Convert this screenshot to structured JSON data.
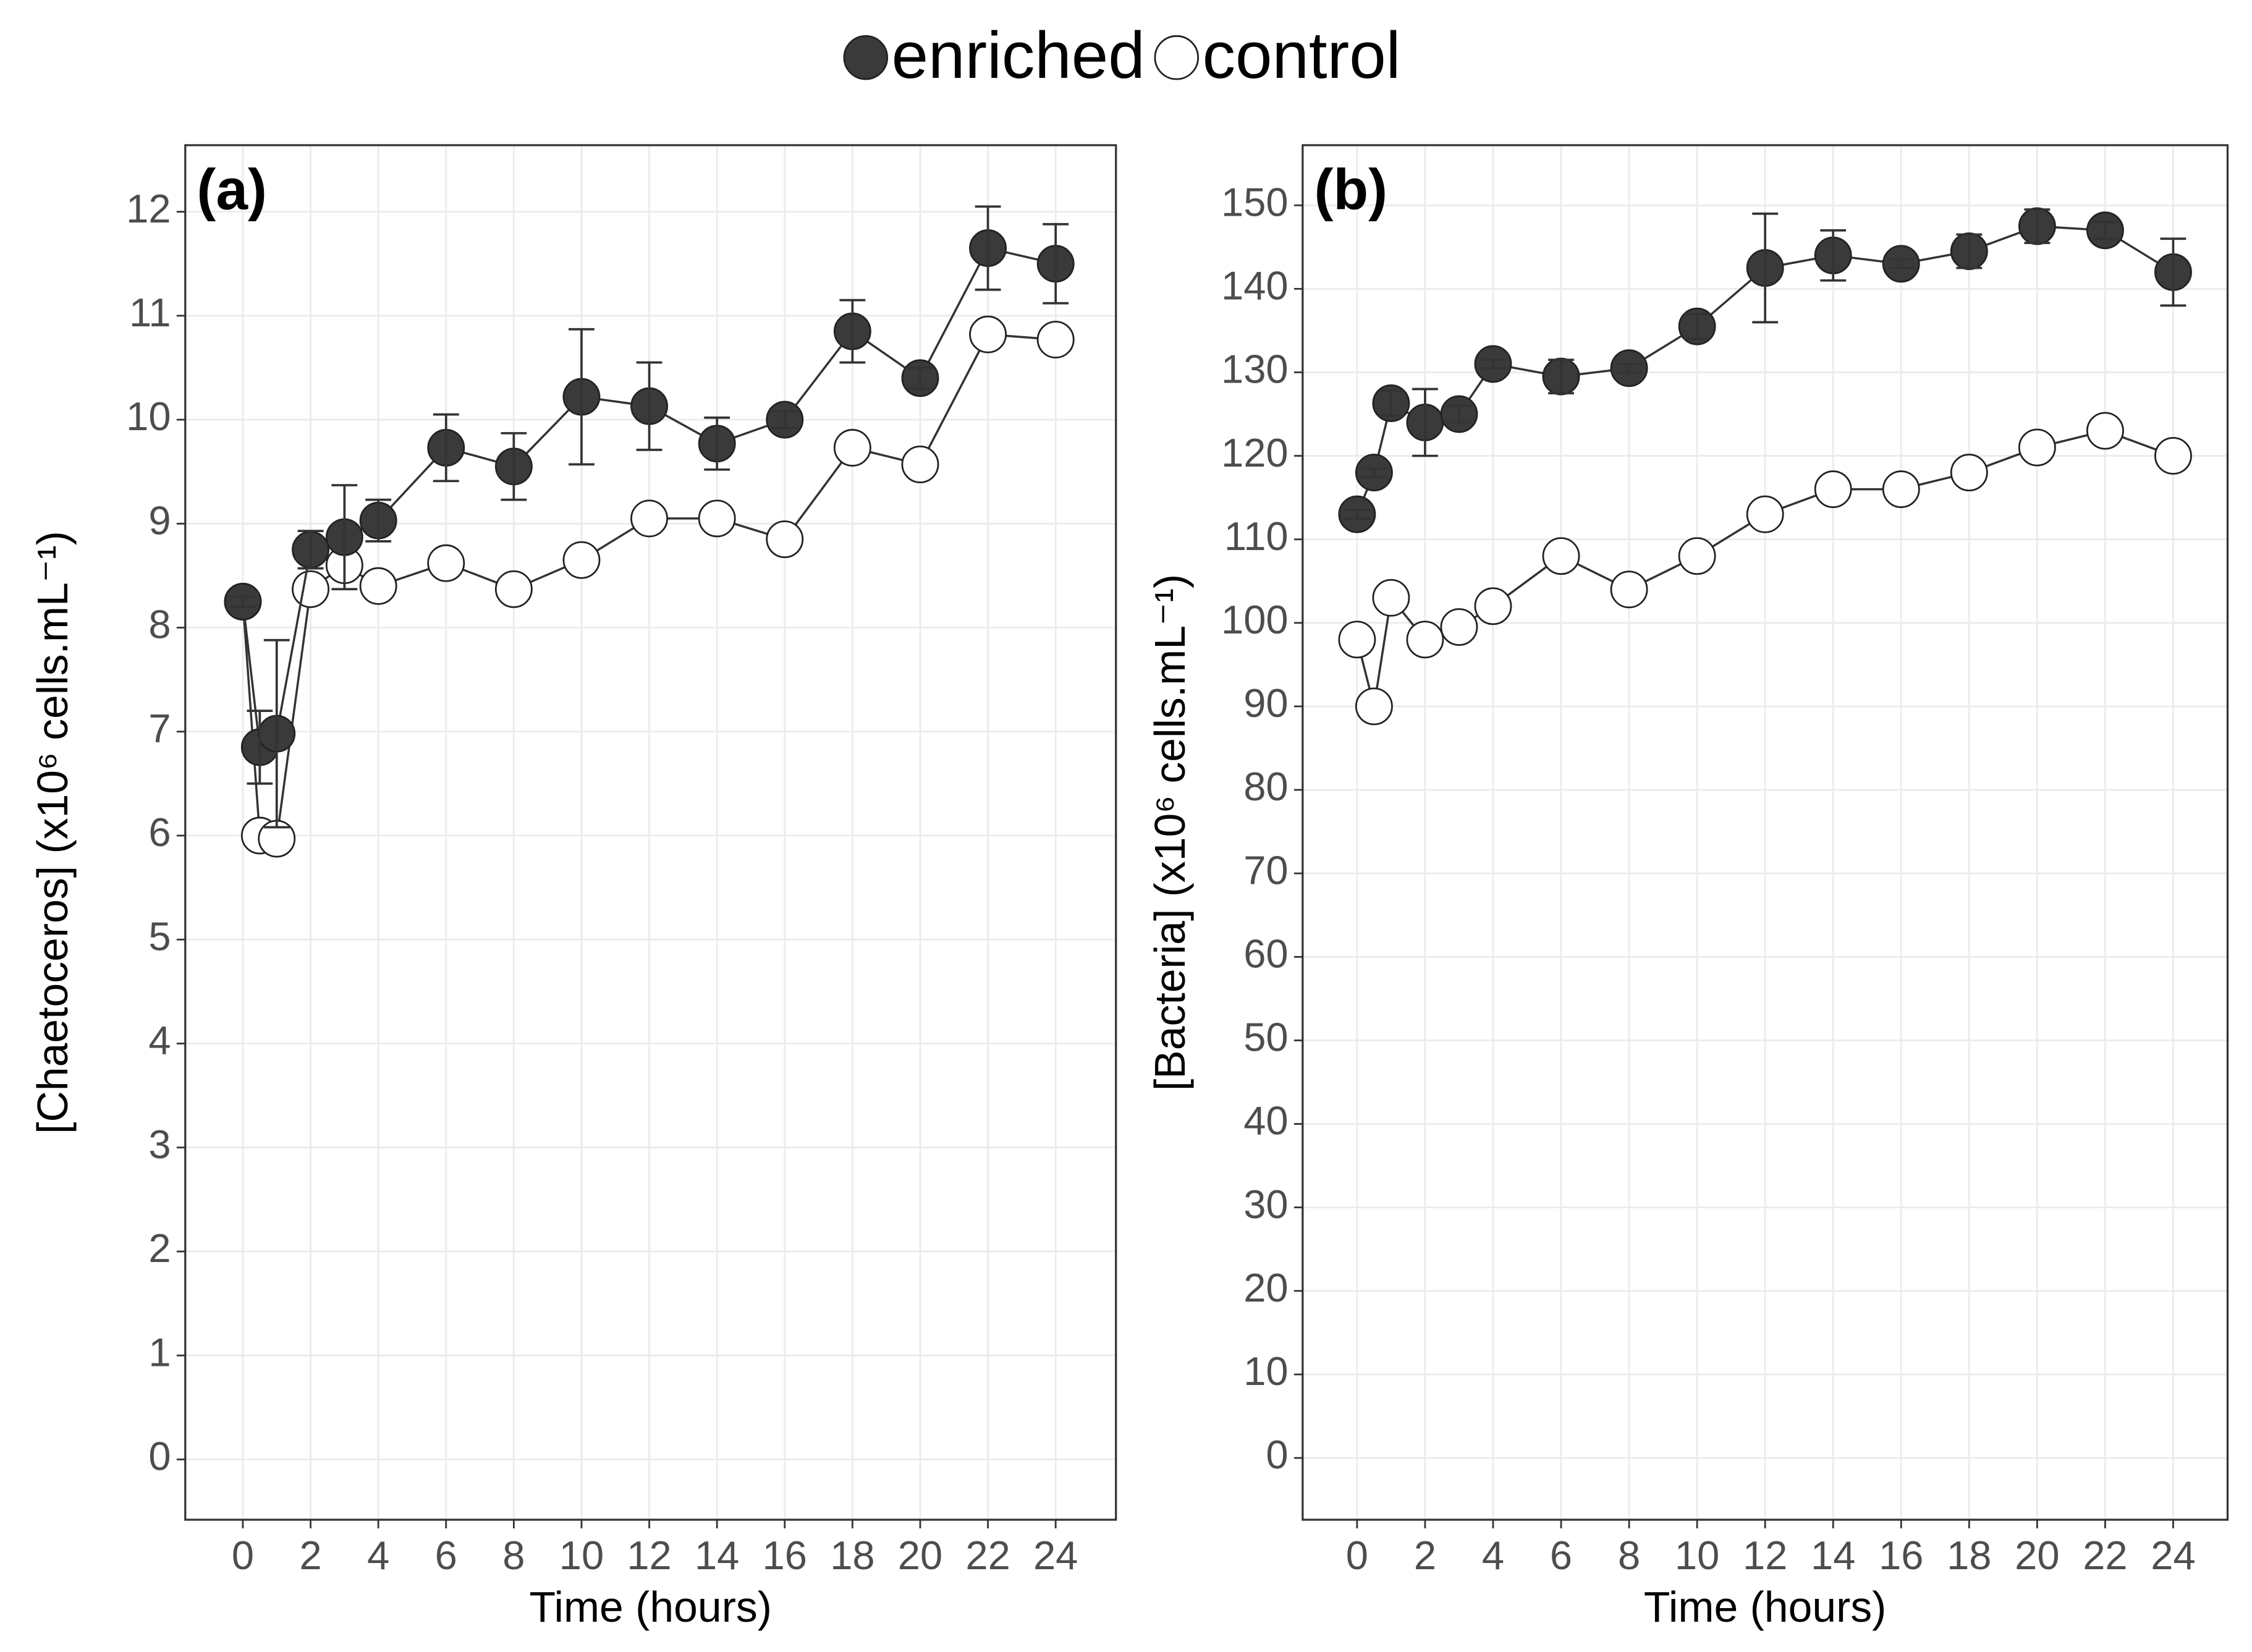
{
  "chart_data": [
    {
      "type": "line",
      "title": "(a)",
      "xlabel": "Time (hours)",
      "ylabel": "[Chaetoceros] (x10⁶ cells.mL⁻¹)",
      "legend": "top",
      "grid": true,
      "x": [
        0,
        0.5,
        1,
        2,
        3,
        4,
        6,
        8,
        10,
        12,
        14,
        16,
        18,
        20,
        22,
        24
      ],
      "series": [
        {
          "name": "control",
          "color": "#ffffff",
          "values": [
            8.25,
            6.0,
            5.97,
            8.37,
            8.6,
            8.4,
            8.62,
            8.37,
            8.65,
            9.05,
            9.05,
            8.85,
            9.73,
            9.57,
            10.82,
            10.77
          ]
        },
        {
          "name": "enriched",
          "color": "#3a3a3a",
          "values": [
            8.25,
            6.85,
            6.98,
            8.75,
            8.87,
            9.03,
            9.73,
            9.55,
            10.22,
            10.13,
            9.77,
            10.0,
            10.85,
            10.4,
            11.65,
            11.5
          ],
          "errors": [
            0.05,
            0.35,
            0.9,
            0.18,
            0.5,
            0.2,
            0.32,
            0.32,
            0.65,
            0.42,
            0.25,
            0.08,
            0.3,
            0.1,
            0.4,
            0.38
          ]
        }
      ],
      "xlim": [
        -1.7,
        25.78
      ],
      "ylim": [
        -0.58,
        12.64
      ],
      "xticks": [
        0,
        2,
        4,
        6,
        8,
        10,
        12,
        14,
        16,
        18,
        20,
        22,
        24
      ],
      "yticks": [
        0,
        1,
        2,
        3,
        4,
        5,
        6,
        7,
        8,
        9,
        10,
        11,
        12
      ]
    },
    {
      "type": "line",
      "title": "(b)",
      "xlabel": "Time (hours)",
      "ylabel": "[Bacteria] (x10⁶ cells.mL⁻¹)",
      "grid": true,
      "x": [
        0,
        0.5,
        1,
        2,
        3,
        4,
        6,
        8,
        10,
        12,
        14,
        16,
        18,
        20,
        22,
        24
      ],
      "series": [
        {
          "name": "control",
          "color": "#ffffff",
          "values": [
            98,
            90,
            103,
            98,
            99.5,
            102,
            108,
            104,
            108,
            113,
            116,
            116,
            118,
            121,
            123,
            120
          ]
        },
        {
          "name": "enriched",
          "color": "#3a3a3a",
          "values": [
            113,
            118,
            126.3,
            124,
            125,
            131,
            129.5,
            130.5,
            135.5,
            142.5,
            144,
            143,
            144.5,
            147.5,
            147,
            142
          ],
          "errors": [
            0.5,
            0.5,
            1.5,
            4,
            1,
            0.5,
            2,
            0.5,
            1.5,
            6.5,
            3,
            0.5,
            2,
            2,
            1,
            4
          ]
        }
      ],
      "xlim": [
        -1.6,
        25.6
      ],
      "ylim": [
        -7.4,
        157.2
      ],
      "xticks": [
        0,
        2,
        4,
        6,
        8,
        10,
        12,
        14,
        16,
        18,
        20,
        22,
        24
      ],
      "yticks": [
        0,
        10,
        20,
        30,
        40,
        50,
        60,
        70,
        80,
        90,
        100,
        110,
        120,
        130,
        140,
        150
      ]
    }
  ]
}
